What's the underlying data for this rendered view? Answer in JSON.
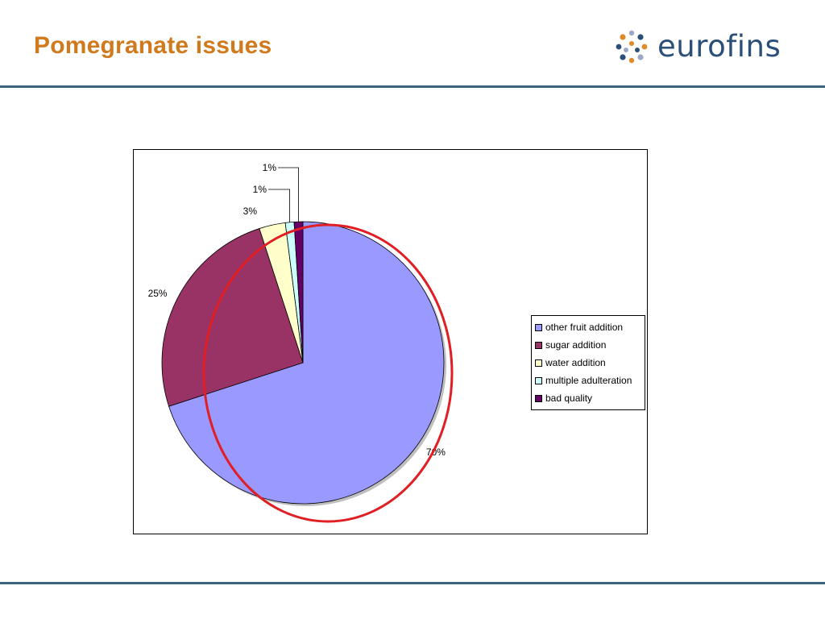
{
  "slide": {
    "title": "Pomegranate issues"
  },
  "logo": {
    "text": "eurofins"
  },
  "colors": {
    "title": "#d07a1d",
    "logo_text": "#2c4f78",
    "rule": "#3a6380",
    "highlight": "#e01e24"
  },
  "chart_data": {
    "type": "pie",
    "title": "",
    "categories": [
      "other fruit addition",
      "sugar addition",
      "water addition",
      "multiple adulteration",
      "bad quality"
    ],
    "values": [
      70,
      25,
      3,
      1,
      1
    ],
    "labels": [
      "70%",
      "25%",
      "3%",
      "1%",
      "1%"
    ],
    "colors": [
      "#9999ff",
      "#993366",
      "#ffffcc",
      "#ccffff",
      "#660066"
    ],
    "legend": {
      "placement": "right"
    },
    "annotation": "red ellipse highlighting the 70% slice"
  }
}
